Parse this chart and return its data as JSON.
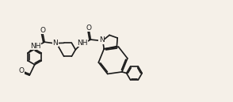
{
  "bg_color": "#f5f0e8",
  "line_color": "#1a1a1a",
  "lw": 1.2,
  "fs": 6.5,
  "figsize": [
    2.94,
    1.29
  ],
  "dpi": 100,
  "xlim": [
    0,
    9.8
  ],
  "ylim": [
    0,
    4.3
  ]
}
